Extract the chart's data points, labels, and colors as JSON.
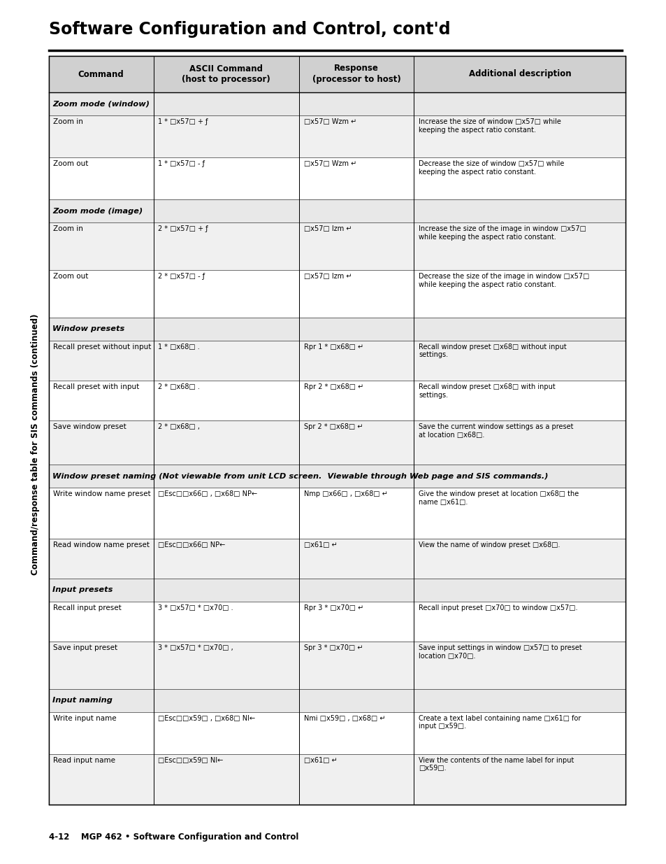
{
  "title": "Software Configuration and Control, cont'd",
  "footer": "4-12    MGP 462 • Software Configuration and Control",
  "table_title": "Command/response table for SIS commands (continued)",
  "col_headers": [
    "Command",
    "ASCII Command\n(host to processor)",
    "Response\n(processor to host)",
    "Additional description"
  ],
  "sections": [
    {
      "section_header": "Zoom mode (window)",
      "rows": [
        {
          "command": "Zoom in",
          "ascii": "1 * □x57□ + ƒ",
          "response": "□x57□ Wzm ↵",
          "description": "Increase the size of window □x57□ while\nkeeping the aspect ratio constant."
        },
        {
          "command": "Zoom out",
          "ascii": "1 * □x57□ - ƒ",
          "response": "□x57□ Wzm ↵",
          "description": "Decrease the size of window □x57□ while\nkeeping the aspect ratio constant."
        }
      ]
    },
    {
      "section_header": "Zoom mode (image)",
      "rows": [
        {
          "command": "Zoom in",
          "ascii": "2 * □x57□ + ƒ",
          "response": "□x57□ Izm ↵",
          "description": "Increase the size of the image in window □x57□\nwhile keeping the aspect ratio constant."
        },
        {
          "command": "Zoom out",
          "ascii": "2 * □x57□ - ƒ",
          "response": "□x57□ Izm ↵",
          "description": "Decrease the size of the image in window □x57□\nwhile keeping the aspect ratio constant."
        }
      ]
    },
    {
      "section_header": "Window presets",
      "rows": [
        {
          "command": "Recall preset without input",
          "ascii": "1 * □x68□ .",
          "response": "Rpr 1 * □x68□ ↵",
          "description": "Recall window preset □x68□ without input\nsettings."
        },
        {
          "command": "Recall preset with input",
          "ascii": "2 * □x68□ .",
          "response": "Rpr 2 * □x68□ ↵",
          "description": "Recall window preset □x68□ with input\nsettings."
        },
        {
          "command": "Save window preset",
          "ascii": "2 * □x68□ ,",
          "response": "Spr 2 * □x68□ ↵",
          "description": "Save the current window settings as a preset\nat location □x68□."
        }
      ]
    },
    {
      "section_header": "Window preset naming",
      "section_note": "(Not viewable from unit LCD screen.  Viewable through Web page and SIS commands.)",
      "rows": [
        {
          "command": "Write window name preset",
          "ascii": "□Esc□□x66□ , □x68□ NP←",
          "response": "Nmp □x66□ , □x68□ ↵",
          "description": "Give the window preset at location □x68□ the\nname □x61□."
        },
        {
          "command": "Read window name preset",
          "ascii": "□Esc□□x66□ NP←",
          "response": "□x61□ ↵",
          "description": "View the name of window preset □x68□."
        }
      ]
    },
    {
      "section_header": "Input presets",
      "rows": [
        {
          "command": "Recall input preset",
          "ascii": "3 * □x57□ * □x70□ .",
          "response": "Rpr 3 * □x70□ ↵",
          "description": "Recall input preset □x70□ to window □x57□."
        },
        {
          "command": "Save input preset",
          "ascii": "3 * □x57□ * □x70□ ,",
          "response": "Spr 3 * □x70□ ↵",
          "description": "Save input settings in window □x57□ to preset\nlocation □x70□."
        }
      ]
    },
    {
      "section_header": "Input naming",
      "rows": [
        {
          "command": "Write input name",
          "ascii": "□Esc□□x59□ , □x68□ NI←",
          "response": "Nmi □x59□ , □x68□ ↵",
          "description": "Create a text label containing name □x61□ for\ninput □x59□."
        },
        {
          "command": "Read input name",
          "ascii": "□Esc□□x59□ NI←",
          "response": "□x61□ ↵",
          "description": "View the contents of the name label for input\n□x59□."
        }
      ]
    }
  ],
  "bg_color": "#ffffff",
  "header_bg": "#d0d0d0",
  "section_header_bg": "#e8e8e8",
  "row_alt_bg": "#f0f0f0",
  "row_bg": "#ffffff",
  "border_color": "#000000",
  "title_color": "#000000",
  "text_color": "#000000"
}
